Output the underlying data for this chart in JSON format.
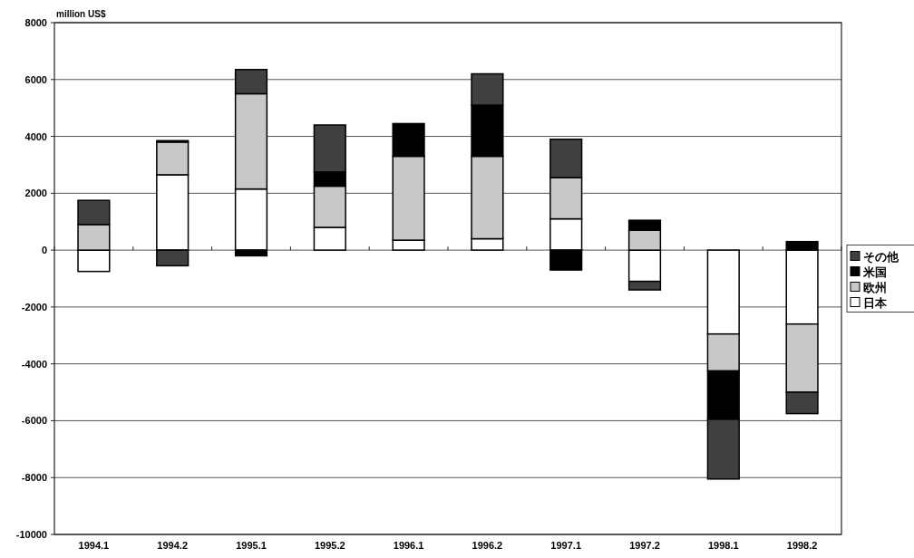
{
  "chart_data": {
    "type": "bar",
    "stacked": true,
    "ylabel": "million US$",
    "categories": [
      "1994.1",
      "1994.2",
      "1995.1",
      "1995.2",
      "1996.1",
      "1996.2",
      "1997.1",
      "1997.2",
      "1998.1",
      "1998.2"
    ],
    "series": [
      {
        "name": "日本",
        "color": "#ffffff",
        "values": [
          -750,
          2650,
          2150,
          800,
          350,
          400,
          1100,
          -1100,
          -2950,
          -2600
        ]
      },
      {
        "name": "欧州",
        "color": "#c8c8c8",
        "values": [
          900,
          1150,
          3350,
          1450,
          2950,
          2900,
          1450,
          700,
          -1300,
          -2400
        ]
      },
      {
        "name": "米国",
        "color": "#000000",
        "values": [
          null,
          50,
          -200,
          500,
          1150,
          1800,
          -700,
          350,
          -1700,
          300
        ]
      },
      {
        "name": "その他",
        "color": "#404040",
        "values": [
          850,
          -550,
          850,
          1650,
          null,
          1100,
          1350,
          -300,
          -2100,
          -750
        ]
      }
    ],
    "ylim": [
      -10000,
      8000
    ],
    "yticks": [
      -10000,
      -8000,
      -6000,
      -4000,
      -2000,
      0,
      2000,
      4000,
      6000,
      8000
    ],
    "grid": "y",
    "legend": "right"
  }
}
